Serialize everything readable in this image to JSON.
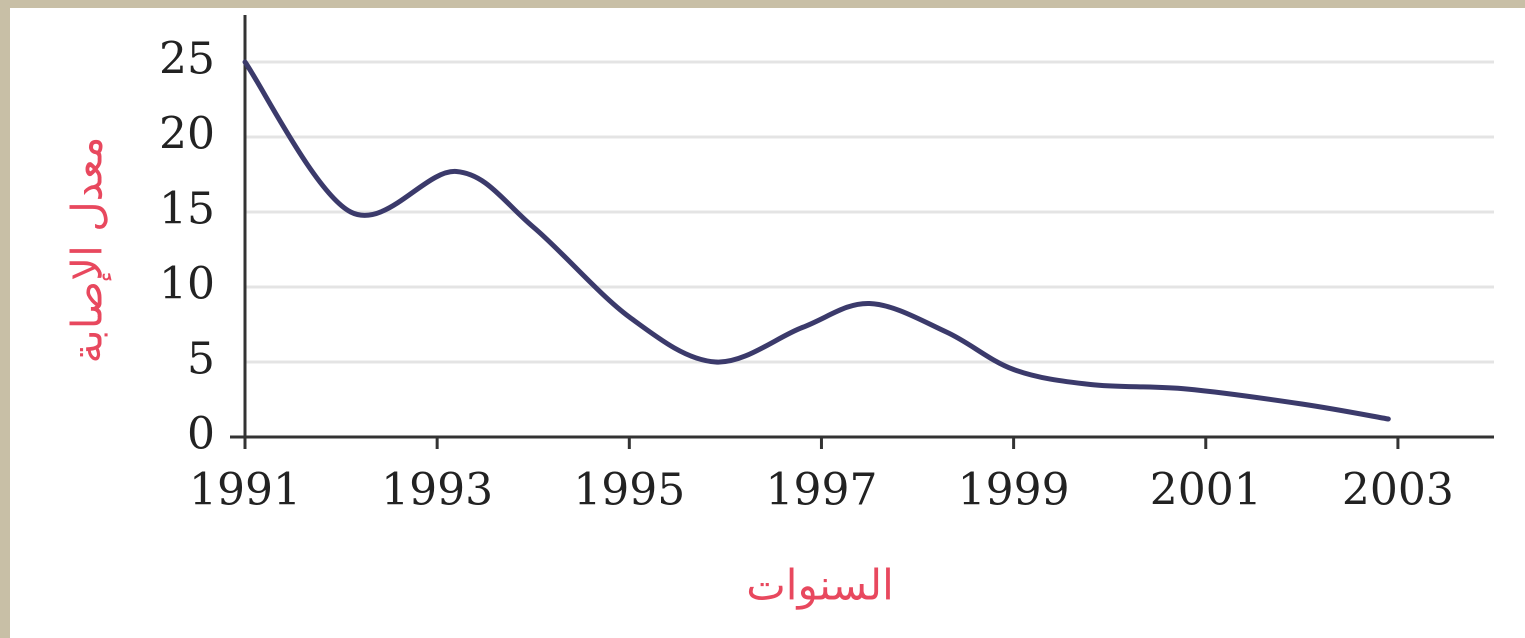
{
  "chart_data": {
    "type": "line",
    "x_label": "السنوات",
    "y_label": "معدل الإصابة",
    "x": [
      1991,
      1992.1,
      1993.2,
      1994,
      1995,
      1995.9,
      1996.8,
      1997.5,
      1998.3,
      1999,
      1999.8,
      2000.8,
      2002,
      2002.9
    ],
    "series": [
      {
        "color": "#3b3a6b",
        "values": [
          25,
          15,
          17.7,
          14,
          8,
          5,
          7.3,
          8.9,
          7,
          4.5,
          3.5,
          3.2,
          2.2,
          1.2
        ]
      }
    ],
    "xlim": [
      1991,
      2004
    ],
    "xticks": [
      1991,
      1993,
      1995,
      1997,
      1999,
      2001,
      2003
    ],
    "ylim": [
      0,
      25
    ],
    "yticks": [
      0,
      5,
      10,
      15,
      20,
      25
    ],
    "grid": true
  }
}
